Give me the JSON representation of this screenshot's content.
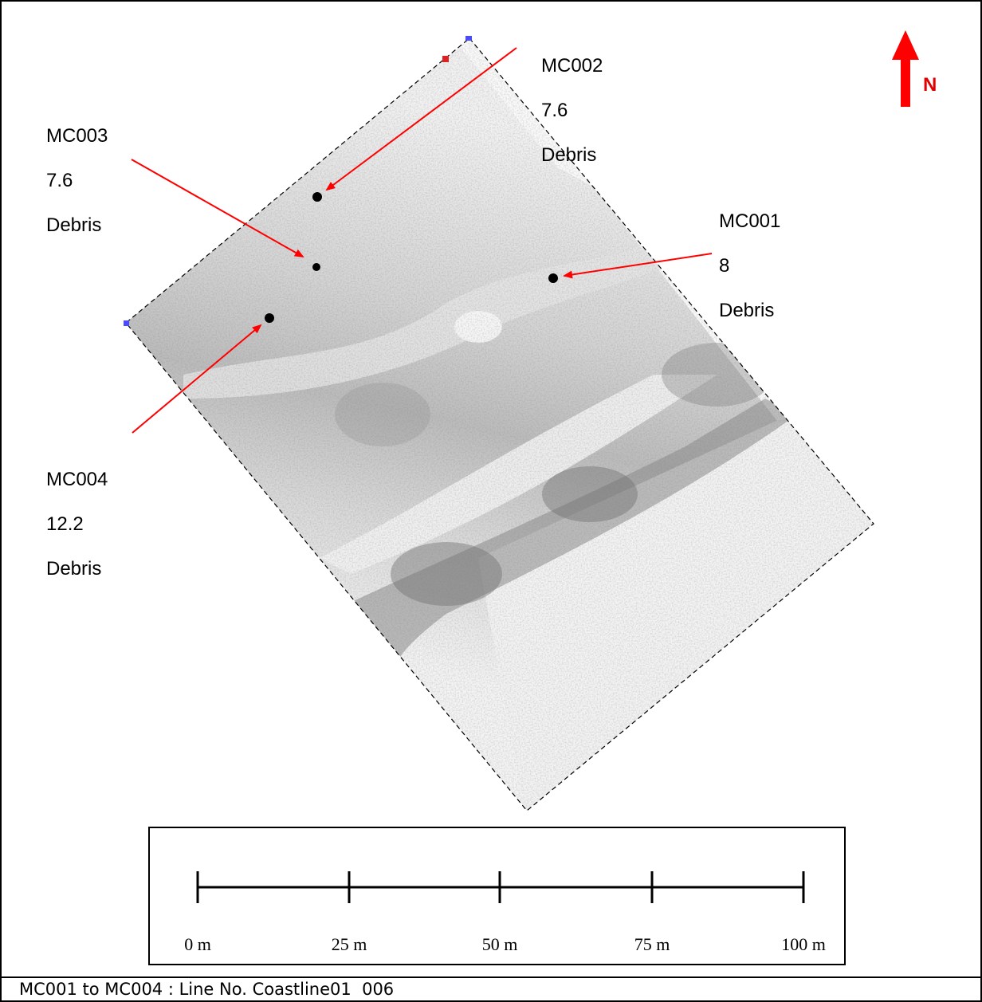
{
  "targets": [
    {
      "id": "MC001",
      "value": "8",
      "type": "Debris"
    },
    {
      "id": "MC002",
      "value": "7.6",
      "type": "Debris"
    },
    {
      "id": "MC003",
      "value": "7.6",
      "type": "Debris"
    },
    {
      "id": "MC004",
      "value": "12.2",
      "type": "Debris"
    }
  ],
  "north": {
    "label": "N",
    "icon": "north-arrow-icon",
    "color": "#ff0000"
  },
  "scale_bar": {
    "labels": [
      "0 m",
      "25 m",
      "50 m",
      "75 m",
      "100 m"
    ]
  },
  "caption": "MC001 to MC004 : Line No. Coastline01  006",
  "colors": {
    "annotation_arrow": "#ff0000",
    "target_marker": "#000000",
    "survey_outline": "#000000"
  }
}
